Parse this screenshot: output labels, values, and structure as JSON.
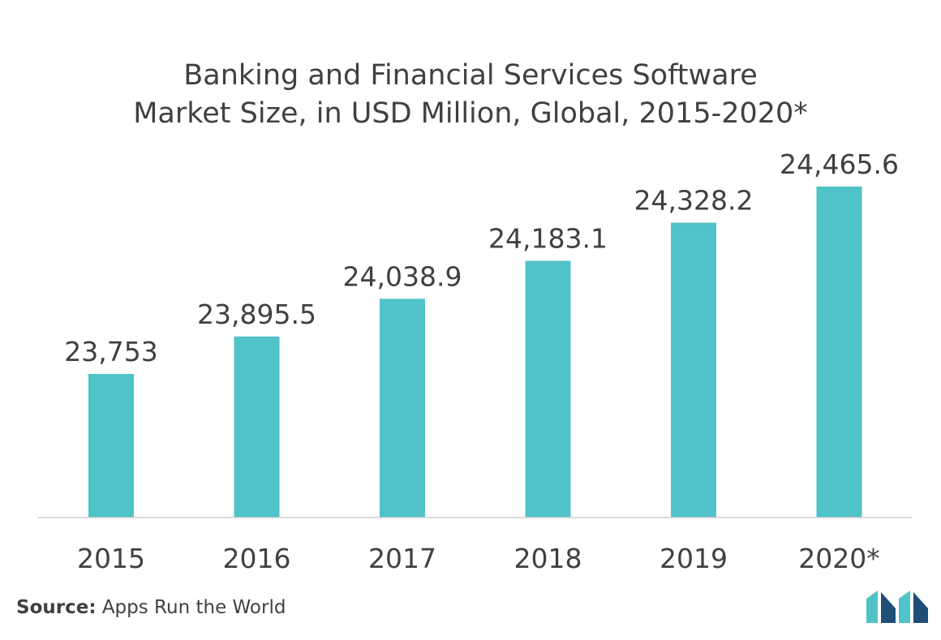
{
  "chart_data": {
    "type": "bar",
    "title_line1": "Banking and Financial Services Software",
    "title_line2": "Market Size, in USD Million, Global, 2015-2020*",
    "categories": [
      "2015",
      "2016",
      "2017",
      "2018",
      "2019",
      "2020*"
    ],
    "values": [
      23753,
      23895.5,
      24038.9,
      24183.1,
      24328.2,
      24465.6
    ],
    "value_labels": [
      "23,753",
      "23,895.5",
      "24,038.9",
      "24,183.1",
      "24,328.2",
      "24,465.6"
    ],
    "bar_color": "#4fc3c7",
    "grid": false,
    "legend": "none"
  },
  "source": {
    "label": "Source:",
    "text": "Apps Run the World"
  },
  "logo": {
    "icon": "mordor-logo-icon",
    "colors": [
      "#1f4e79",
      "#4fc3c7"
    ]
  }
}
